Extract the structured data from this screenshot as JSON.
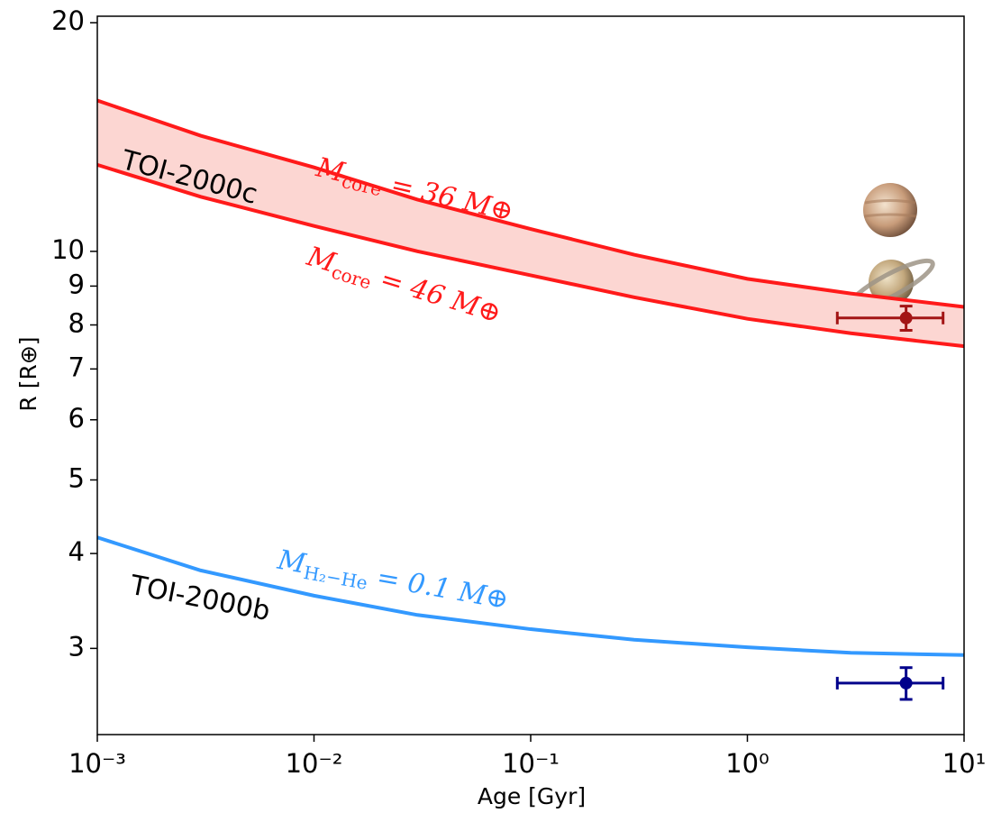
{
  "chart_data": {
    "type": "line",
    "xlabel": "Age [Gyr]",
    "ylabel": "R [R⊕]",
    "xscale": "log",
    "yscale": "log",
    "xlim": [
      0.001,
      10
    ],
    "ylim": [
      2.31,
      20.4
    ],
    "xticks": [
      {
        "value": 0.001,
        "label": "10⁻³"
      },
      {
        "value": 0.01,
        "label": "10⁻²"
      },
      {
        "value": 0.1,
        "label": "10⁻¹"
      },
      {
        "value": 1,
        "label": "10⁰"
      },
      {
        "value": 10,
        "label": "10¹"
      }
    ],
    "yticks": [
      3,
      4,
      5,
      6,
      7,
      8,
      9,
      10,
      20
    ],
    "x": [
      0.001,
      0.003,
      0.01,
      0.03,
      0.1,
      0.3,
      1,
      3,
      10
    ],
    "series": [
      {
        "color": "#ff1a1a",
        "values": [
          15.8,
          14.2,
          12.9,
          11.7,
          10.7,
          9.9,
          9.2,
          8.8,
          8.45
        ]
      },
      {
        "color": "#ff1a1a",
        "values": [
          13.0,
          11.8,
          10.8,
          10.0,
          9.3,
          8.7,
          8.15,
          7.8,
          7.5
        ]
      },
      {
        "color": "#3399ff",
        "values": [
          4.2,
          3.8,
          3.52,
          3.32,
          3.18,
          3.08,
          3.01,
          2.96,
          2.94
        ]
      }
    ],
    "band_color": "#fcd6d2",
    "points": [
      {
        "x": 5.4,
        "y": 8.17,
        "xerr": [
          2.8,
          2.6
        ],
        "yerr": 0.3,
        "color": "#a31515"
      },
      {
        "x": 5.4,
        "y": 2.7,
        "xerr": [
          2.8,
          2.6
        ],
        "yerr": 0.13,
        "color": "#00008b"
      }
    ],
    "annotations": [
      {
        "text": "TOI-2000c",
        "color": "#000000"
      },
      {
        "text": "TOI-2000b",
        "color": "#000000"
      },
      {
        "symbol": "M",
        "subscript": "core",
        "rest": " = 36 M⊕",
        "color": "#ff1a1a"
      },
      {
        "symbol": "M",
        "subscript": "core",
        "rest": " = 46 M⊕",
        "color": "#ff1a1a"
      },
      {
        "symbol": "M",
        "subscript": "H₂−He",
        "rest": " = 0.1 M⊕",
        "color": "#3399ff"
      }
    ]
  }
}
